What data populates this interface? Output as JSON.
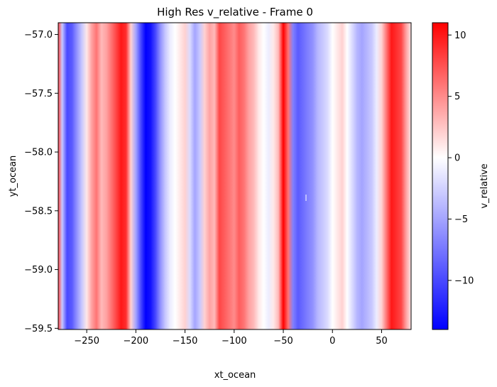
{
  "chart_data": {
    "type": "heatmap",
    "title": "High Res v_relative - Frame 0",
    "xlabel": "xt_ocean",
    "ylabel": "yt_ocean",
    "colorbar_label": "v_relative",
    "colormap": "bwr",
    "colormap_colors": [
      "#0000ff",
      "#ffffff",
      "#ff0000"
    ],
    "xlim": [
      -279,
      80
    ],
    "ylim": [
      -59.51,
      -56.9
    ],
    "xticks": [
      -250,
      -200,
      -150,
      -100,
      -50,
      0,
      50
    ],
    "xtick_labels": [
      "−250",
      "−200",
      "−150",
      "−100",
      "−50",
      "0",
      "50"
    ],
    "yticks": [
      -57.0,
      -57.5,
      -58.0,
      -58.5,
      -59.0,
      -59.5
    ],
    "ytick_labels": [
      "−57.0",
      "−57.5",
      "−58.0",
      "−58.5",
      "−59.0",
      "−59.5"
    ],
    "clim": [
      -14,
      11
    ],
    "cbar_ticks": [
      10,
      5,
      0,
      -5,
      -10
    ],
    "cbar_tick_labels": [
      "10",
      "5",
      "0",
      "−5",
      "−10"
    ],
    "profile_x": [
      -279,
      -275,
      -270,
      -265,
      -260,
      -255,
      -250,
      -245,
      -240,
      -235,
      -230,
      -225,
      -220,
      -215,
      -210,
      -205,
      -200,
      -195,
      -190,
      -185,
      -180,
      -175,
      -170,
      -165,
      -160,
      -155,
      -150,
      -145,
      -140,
      -135,
      -130,
      -125,
      -120,
      -115,
      -110,
      -105,
      -100,
      -95,
      -90,
      -85,
      -80,
      -75,
      -70,
      -65,
      -60,
      -55,
      -50,
      -45,
      -40,
      -35,
      -30,
      -25,
      -20,
      -15,
      -10,
      -5,
      0,
      5,
      10,
      15,
      20,
      25,
      30,
      35,
      40,
      45,
      50,
      55,
      60,
      65,
      70,
      75,
      80
    ],
    "profile_values": [
      8,
      -3,
      -10,
      -9,
      -6,
      -3,
      1,
      4,
      6,
      3,
      4,
      6,
      8,
      10,
      9,
      2,
      -5,
      -10,
      -14,
      -13,
      -10,
      -6,
      -3,
      -1,
      0,
      1,
      2,
      -2,
      -5,
      -3,
      2,
      4,
      3,
      8,
      7,
      6,
      5,
      7,
      6,
      4,
      3,
      1,
      0,
      -1,
      1,
      3,
      11,
      6,
      -7,
      -9,
      -8,
      -7,
      -6,
      -4,
      -3,
      -2,
      0,
      1,
      2,
      0,
      -2,
      -4,
      -5,
      -4,
      -3,
      -1,
      2,
      6,
      10,
      9,
      8,
      4,
      1
    ]
  }
}
